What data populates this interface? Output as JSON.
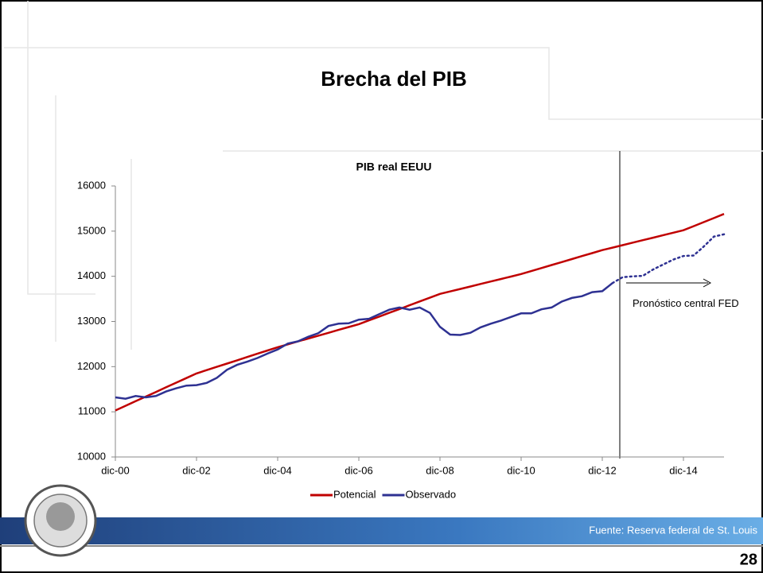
{
  "slide": {
    "title": "Brecha del PIB",
    "source": "Fuente: Reserva federal de St. Louis",
    "page_number": "28"
  },
  "chart_data": {
    "type": "line",
    "title": "PIB real EEUU",
    "categories": [
      "dic-00",
      null,
      null,
      null,
      null,
      null,
      null,
      null,
      "dic-02",
      null,
      null,
      null,
      null,
      null,
      null,
      null,
      "dic-04",
      null,
      null,
      null,
      null,
      null,
      null,
      null,
      "dic-06",
      null,
      null,
      null,
      null,
      null,
      null,
      null,
      "dic-08",
      null,
      null,
      null,
      null,
      null,
      null,
      null,
      "dic-10",
      null,
      null,
      null,
      null,
      null,
      null,
      null,
      "dic-12",
      null,
      null,
      null,
      null,
      null,
      null,
      null,
      "dic-14",
      null,
      null,
      null,
      null
    ],
    "series": [
      {
        "name": "Potencial",
        "color": "#c00000",
        "values": [
          11030,
          11133,
          11235,
          11338,
          11440,
          11543,
          11645,
          11748,
          11850,
          11923,
          11995,
          12068,
          12140,
          12213,
          12285,
          12358,
          12430,
          12494,
          12558,
          12621,
          12685,
          12749,
          12813,
          12876,
          12940,
          13024,
          13108,
          13191,
          13275,
          13359,
          13443,
          13526,
          13610,
          13665,
          13720,
          13775,
          13830,
          13885,
          13940,
          13995,
          14050,
          14116,
          14183,
          14249,
          14315,
          14381,
          14448,
          14514,
          14580,
          14635,
          14690,
          14745,
          14800,
          14855,
          14910,
          14965,
          15020,
          15110,
          15200,
          15290,
          15380
        ]
      },
      {
        "name": "Observado",
        "color": "#2e3192",
        "values": [
          11320,
          11290,
          11350,
          11320,
          11350,
          11450,
          11520,
          11580,
          11590,
          11640,
          11750,
          11930,
          12040,
          12110,
          12190,
          12290,
          12380,
          12510,
          12560,
          12660,
          12740,
          12900,
          12950,
          12960,
          13040,
          13060,
          13160,
          13260,
          13310,
          13260,
          13310,
          13190,
          12880,
          12710,
          12700,
          12750,
          12870,
          12950,
          13020,
          13100,
          13180,
          13180,
          13270,
          13310,
          13440,
          13520,
          13560,
          13650,
          13670,
          13850,
          null,
          null,
          null,
          null,
          null,
          null,
          null,
          null,
          null,
          null,
          null
        ]
      },
      {
        "color": "#2e3192",
        "dash": "dotted",
        "values": [
          null,
          null,
          null,
          null,
          null,
          null,
          null,
          null,
          null,
          null,
          null,
          null,
          null,
          null,
          null,
          null,
          null,
          null,
          null,
          null,
          null,
          null,
          null,
          null,
          null,
          null,
          null,
          null,
          null,
          null,
          null,
          null,
          null,
          null,
          null,
          null,
          null,
          null,
          null,
          null,
          null,
          null,
          null,
          null,
          null,
          null,
          null,
          null,
          null,
          13850,
          13980,
          14000,
          14010,
          14150,
          14260,
          14370,
          14450,
          14460,
          14660,
          14880,
          14930
        ]
      }
    ],
    "ylim": [
      10000,
      16000
    ],
    "yticks": [
      10000,
      11000,
      12000,
      13000,
      14000,
      15000,
      16000
    ],
    "annotation": "Pronóstico central FED",
    "legend": "bottom"
  }
}
